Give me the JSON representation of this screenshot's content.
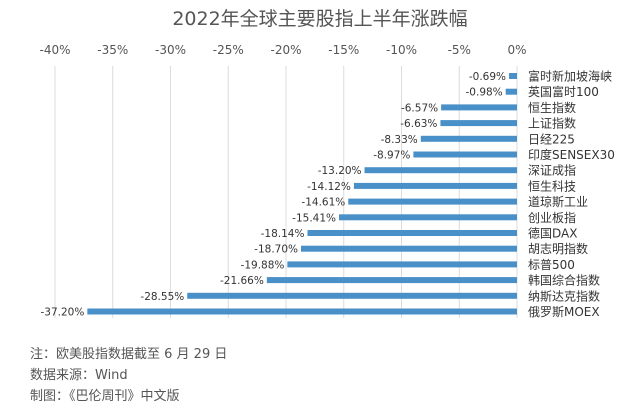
{
  "chart_data": {
    "type": "bar",
    "orientation": "horizontal",
    "title": "2022年全球主要股指上半年涨跌幅",
    "xlim": [
      -40,
      0
    ],
    "xticks": [
      "-40%",
      "-35%",
      "-30%",
      "-25%",
      "-20%",
      "-15%",
      "-10%",
      "-5%",
      "0%"
    ],
    "xtick_values": [
      -40,
      -35,
      -30,
      -25,
      -20,
      -15,
      -10,
      -5,
      0
    ],
    "grid": true,
    "bar_color": "#4a90c8",
    "categories": [
      "富时新加坡海峡",
      "英国富时100",
      "恒生指数",
      "上证指数",
      "日经225",
      "印度SENSEX30",
      "深证成指",
      "恒生科技",
      "道琼斯工业",
      "创业板指",
      "德国DAX",
      "胡志明指数",
      "标普500",
      "韩国综合指数",
      "纳斯达克指数",
      "俄罗斯MOEX"
    ],
    "values": [
      -0.69,
      -0.98,
      -6.57,
      -6.63,
      -8.33,
      -8.97,
      -13.2,
      -14.12,
      -14.61,
      -15.41,
      -18.14,
      -18.7,
      -19.88,
      -21.66,
      -28.55,
      -37.2
    ],
    "data_labels": [
      "-0.69%",
      "-0.98%",
      "-6.57%",
      "-6.63%",
      "-8.33%",
      "-8.97%",
      "-13.20%",
      "-14.12%",
      "-14.61%",
      "-15.41%",
      "-18.14%",
      "-18.70%",
      "-19.88%",
      "-21.66%",
      "-28.55%",
      "-37.20%"
    ]
  },
  "notes": {
    "line1": "注：欧美股指数据截至 6 月 29 日",
    "line2": "数据来源：Wind",
    "line3": "制图：《巴伦周刊》中文版"
  }
}
